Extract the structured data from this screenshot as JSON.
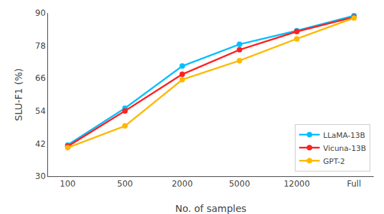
{
  "chart_data": {
    "type": "line",
    "categories": [
      "100",
      "500",
      "2000",
      "5000",
      "12000",
      "Full"
    ],
    "series": [
      {
        "name": "LLaMA-13B",
        "color": "#00BFFF",
        "marker": "circle",
        "values": [
          41.5,
          55.0,
          70.5,
          78.5,
          83.5,
          89.0
        ]
      },
      {
        "name": "Vicuna-13B",
        "color": "#FF2020",
        "marker": "circle",
        "values": [
          41.0,
          54.0,
          67.5,
          76.5,
          83.2,
          88.5
        ]
      },
      {
        "name": "GPT-2",
        "color": "#FFB800",
        "marker": "circle",
        "values": [
          40.5,
          48.5,
          65.5,
          72.5,
          80.5,
          88.2
        ]
      }
    ],
    "xlabel": "No. of samples",
    "ylabel": "SLU-F1 (%)",
    "ylim": [
      30,
      90
    ],
    "yticks": [
      30,
      42,
      54,
      66,
      78,
      90
    ],
    "grid": false,
    "legend": "lower right"
  }
}
